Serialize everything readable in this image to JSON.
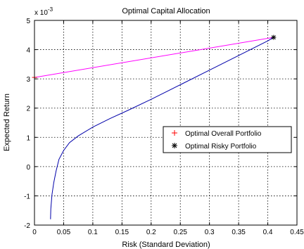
{
  "chart_data": {
    "type": "line",
    "title": "Optimal Capital Allocation",
    "xlabel": "Risk (Standard Deviation)",
    "ylabel": "Expected  Return",
    "y_exponent_label": "x 10",
    "y_exponent_power": "-3",
    "xlim": [
      0,
      0.45
    ],
    "ylim": [
      -2,
      5
    ],
    "x_ticks": [
      0,
      0.05,
      0.1,
      0.15,
      0.2,
      0.25,
      0.3,
      0.35,
      0.4,
      0.45
    ],
    "x_tick_labels": [
      "0",
      "0.05",
      "0.1",
      "0.15",
      "0.2",
      "0.25",
      "0.3",
      "0.35",
      "0.4",
      "0.45"
    ],
    "y_ticks": [
      -2,
      -1,
      0,
      1,
      2,
      3,
      4,
      5
    ],
    "y_tick_labels": [
      "-2",
      "-1",
      "0",
      "1",
      "2",
      "3",
      "4",
      "5"
    ],
    "grid": true,
    "grid_style": "dotted",
    "legend_position": "center-right",
    "series": [
      {
        "kind": "line",
        "color": "#ff00ff",
        "x": [
          0,
          0.41
        ],
        "y": [
          3.05,
          4.42
        ]
      },
      {
        "kind": "line",
        "color": "#0000aa",
        "x": [
          0.0275,
          0.028,
          0.03,
          0.033,
          0.037,
          0.042,
          0.05,
          0.06,
          0.075,
          0.1,
          0.13,
          0.16,
          0.2,
          0.25,
          0.3,
          0.35,
          0.4,
          0.41
        ],
        "y": [
          -1.8,
          -1.45,
          -0.95,
          -0.55,
          -0.15,
          0.25,
          0.55,
          0.82,
          1.05,
          1.35,
          1.65,
          1.92,
          2.3,
          2.8,
          3.3,
          3.8,
          4.3,
          4.42
        ]
      },
      {
        "kind": "marker",
        "name": "Optimal Overall Portfolio",
        "marker": "plus",
        "color": "#ff0000",
        "x": [
          0.0
        ],
        "y": [
          3.05
        ]
      },
      {
        "kind": "marker",
        "name": "Optimal Risky Portfolio",
        "marker": "asterisk",
        "color": "#000000",
        "x": [
          0.41
        ],
        "y": [
          4.42
        ]
      }
    ]
  }
}
